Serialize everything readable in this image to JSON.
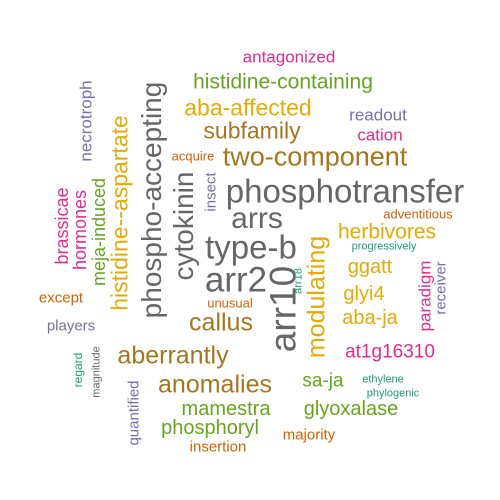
{
  "colors": {
    "magenta": "#e7298a",
    "green": "#66a61e",
    "gold": "#e6ab02",
    "slate": "#7570b3",
    "brown": "#a6761d",
    "gray": "#666666",
    "orange": "#d95f02",
    "teal": "#1b9e77"
  },
  "words": [
    {
      "text": "antagonized",
      "color": "magenta"
    },
    {
      "text": "histidine-containing",
      "color": "green"
    },
    {
      "text": "aba-affected",
      "color": "gold"
    },
    {
      "text": "readout",
      "color": "slate"
    },
    {
      "text": "subfamily",
      "color": "brown"
    },
    {
      "text": "cation",
      "color": "magenta"
    },
    {
      "text": "two-component",
      "color": "brown"
    },
    {
      "text": "acquire",
      "color": "orange"
    },
    {
      "text": "phosphotransfer",
      "color": "gray"
    },
    {
      "text": "adventitious",
      "color": "orange"
    },
    {
      "text": "arrs",
      "color": "gray"
    },
    {
      "text": "herbivores",
      "color": "gold"
    },
    {
      "text": "progressively",
      "color": "teal"
    },
    {
      "text": "type-b",
      "color": "gray"
    },
    {
      "text": "ggatt",
      "color": "gold"
    },
    {
      "text": "arr2",
      "color": "gray"
    },
    {
      "text": "glyi4",
      "color": "gold"
    },
    {
      "text": "unusual",
      "color": "orange"
    },
    {
      "text": "callus",
      "color": "brown"
    },
    {
      "text": "aba-ja",
      "color": "gold"
    },
    {
      "text": "at1g16310",
      "color": "magenta"
    },
    {
      "text": "aberrantly",
      "color": "brown"
    },
    {
      "text": "anomalies",
      "color": "brown"
    },
    {
      "text": "sa-ja",
      "color": "green"
    },
    {
      "text": "ethylene",
      "color": "teal"
    },
    {
      "text": "phylogenic",
      "color": "teal"
    },
    {
      "text": "mamestra",
      "color": "green"
    },
    {
      "text": "glyoxalase",
      "color": "green"
    },
    {
      "text": "phosphoryl",
      "color": "green"
    },
    {
      "text": "majority",
      "color": "orange"
    },
    {
      "text": "insertion",
      "color": "orange"
    },
    {
      "text": "except",
      "color": "orange"
    },
    {
      "text": "players",
      "color": "slate"
    },
    {
      "text": "necrotroph",
      "color": "slate"
    },
    {
      "text": "brassicae",
      "color": "magenta"
    },
    {
      "text": "hormones",
      "color": "magenta"
    },
    {
      "text": "meja-induced",
      "color": "green"
    },
    {
      "text": "histidine--aspartate",
      "color": "gold"
    },
    {
      "text": "phospho-accepting",
      "color": "gray"
    },
    {
      "text": "cytokinin",
      "color": "gray"
    },
    {
      "text": "insect",
      "color": "slate"
    },
    {
      "text": "arr10",
      "color": "gray"
    },
    {
      "text": "arr18",
      "color": "teal"
    },
    {
      "text": "modulating",
      "color": "gold"
    },
    {
      "text": "paradigm",
      "color": "magenta"
    },
    {
      "text": "receiver",
      "color": "slate"
    },
    {
      "text": "regard",
      "color": "teal"
    },
    {
      "text": "magnitude",
      "color": "gray"
    },
    {
      "text": "quantified",
      "color": "slate"
    }
  ]
}
